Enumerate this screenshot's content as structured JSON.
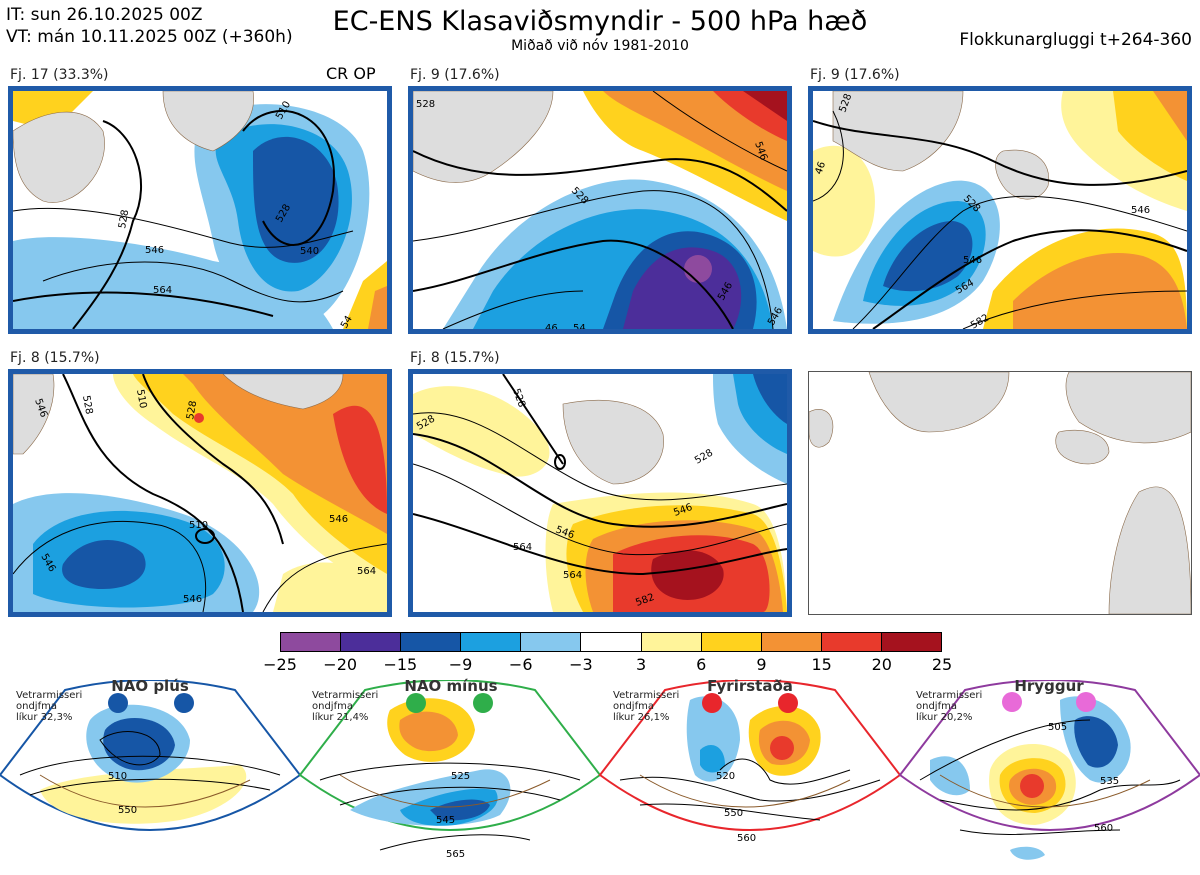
{
  "header": {
    "it_line": "IT: sun 26.10.2025 00Z",
    "vt_line": "VT: mán 10.11.2025 00Z  (+360h)",
    "title": "EC-ENS Klasaviðsmyndir - 500 hPa hæð",
    "subtitle": "Miðað við nóv 1981-2010",
    "window": "Flokkunargluggi t+264-360"
  },
  "panels": [
    {
      "label": "Fj. 17 (33.3%)",
      "extra": "CR OP",
      "contours": [
        "510",
        "528",
        "528",
        "540",
        "546",
        "564",
        "54"
      ]
    },
    {
      "label": "Fj. 9 (17.6%)",
      "contours": [
        "528",
        "546",
        "528",
        "546",
        "546",
        "54",
        "46"
      ]
    },
    {
      "label": "Fj. 9 (17.6%)",
      "contours": [
        "528",
        "46",
        "528",
        "546",
        "546",
        "564",
        "582"
      ]
    },
    {
      "label": "Fj. 8 (15.7%)",
      "contours": [
        "546",
        "528",
        "510",
        "528",
        "510",
        "546",
        "546",
        "564",
        "546"
      ]
    },
    {
      "label": "Fj. 8 (15.7%)",
      "contours": [
        "528",
        "528",
        "528",
        "546",
        "546",
        "564",
        "564",
        "582"
      ]
    }
  ],
  "colorbar": {
    "ticks": [
      "−25",
      "−20",
      "−15",
      "−9",
      "−6",
      "−3",
      "3",
      "6",
      "9",
      "15",
      "20",
      "25"
    ],
    "colors": [
      "#8e4a9e",
      "#4c2e9a",
      "#1656a6",
      "#1ca0e0",
      "#86c8ee",
      "#ffffff",
      "#fff49a",
      "#ffd21e",
      "#f39234",
      "#e83a2c",
      "#a5121e"
    ]
  },
  "regimes": [
    {
      "name": "NAO plús",
      "info": [
        "Vetrarmisseri",
        "ondjfma",
        "líkur 32,3%"
      ],
      "color": "#1656a6",
      "contours": [
        "510",
        "550"
      ]
    },
    {
      "name": "NAO mínus",
      "info": [
        "Vetrarmisseri",
        "ondjfma",
        "líkur 21,4%"
      ],
      "color": "#2fae4a",
      "contours": [
        "525",
        "545",
        "565"
      ]
    },
    {
      "name": "Fyrirstaða",
      "info": [
        "Vetrarmisseri",
        "ondjfma",
        "líkur 26,1%"
      ],
      "color": "#e8262c",
      "contours": [
        "520",
        "550",
        "560"
      ]
    },
    {
      "name": "Hryggur",
      "info": [
        "Vetrarmisseri",
        "ondjfma",
        "líkur 20,2%"
      ],
      "color": "#e86ad8",
      "contours": [
        "505",
        "535",
        "560"
      ]
    }
  ]
}
